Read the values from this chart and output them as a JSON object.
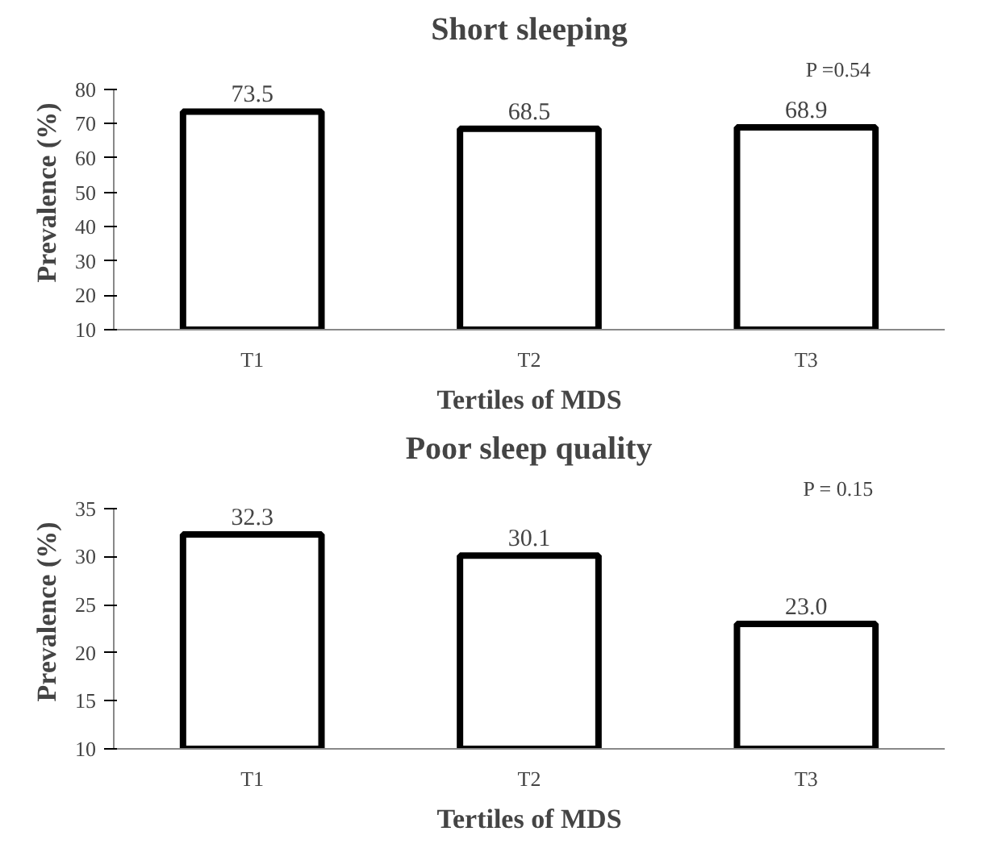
{
  "chart_data": [
    {
      "type": "bar",
      "title": "Short sleeping",
      "xlabel": "Tertiles of MDS",
      "ylabel": "Prevalence (%)",
      "categories": [
        "T1",
        "T2",
        "T3"
      ],
      "values": [
        73.5,
        68.5,
        68.9
      ],
      "color": "#ffffff",
      "ylim": [
        10,
        80
      ],
      "yticks": [
        10,
        20,
        30,
        40,
        50,
        60,
        70,
        80
      ],
      "data_labels": true,
      "grid": false,
      "annotations": [
        "P =0.54"
      ]
    },
    {
      "type": "bar",
      "title": "Poor sleep quality",
      "xlabel": "Tertiles of MDS",
      "ylabel": "Prevalence (%)",
      "categories": [
        "T1",
        "T2",
        "T3"
      ],
      "values": [
        32.3,
        30.1,
        23.0
      ],
      "color": "#ffffff",
      "ylim": [
        10,
        35
      ],
      "yticks": [
        10,
        15,
        20,
        25,
        30,
        35
      ],
      "data_labels": true,
      "grid": false,
      "annotations": [
        "P = 0.15"
      ],
      "value_labels": [
        "32.3",
        "30.1",
        "23.0"
      ]
    }
  ]
}
